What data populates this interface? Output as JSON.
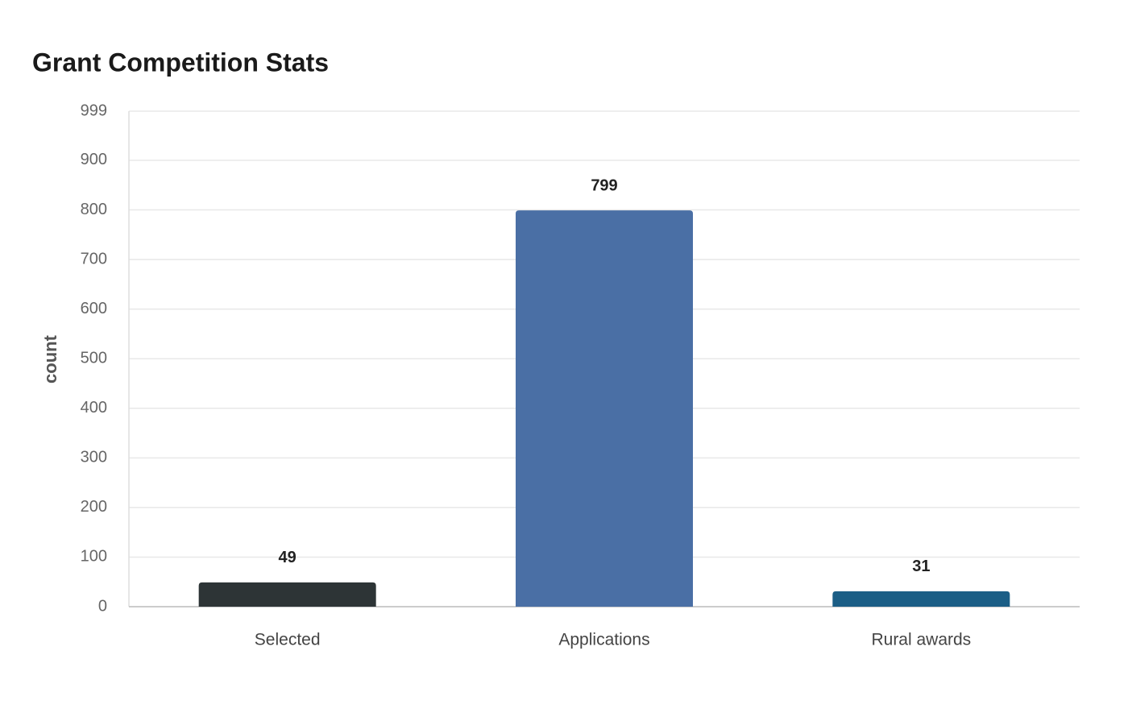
{
  "chart_data": {
    "type": "bar",
    "title": "Grant Competition Stats",
    "y_label": "count",
    "categories": [
      "Selected",
      "Applications",
      "Rural awards"
    ],
    "values": [
      49,
      799,
      31
    ],
    "colors": [
      "#2d3436",
      "#4a6fa5",
      "#1b5e86"
    ],
    "ylim": [
      0,
      999
    ],
    "yticks": [
      0,
      100,
      200,
      300,
      400,
      500,
      600,
      700,
      800,
      900,
      999
    ],
    "grid": true
  }
}
